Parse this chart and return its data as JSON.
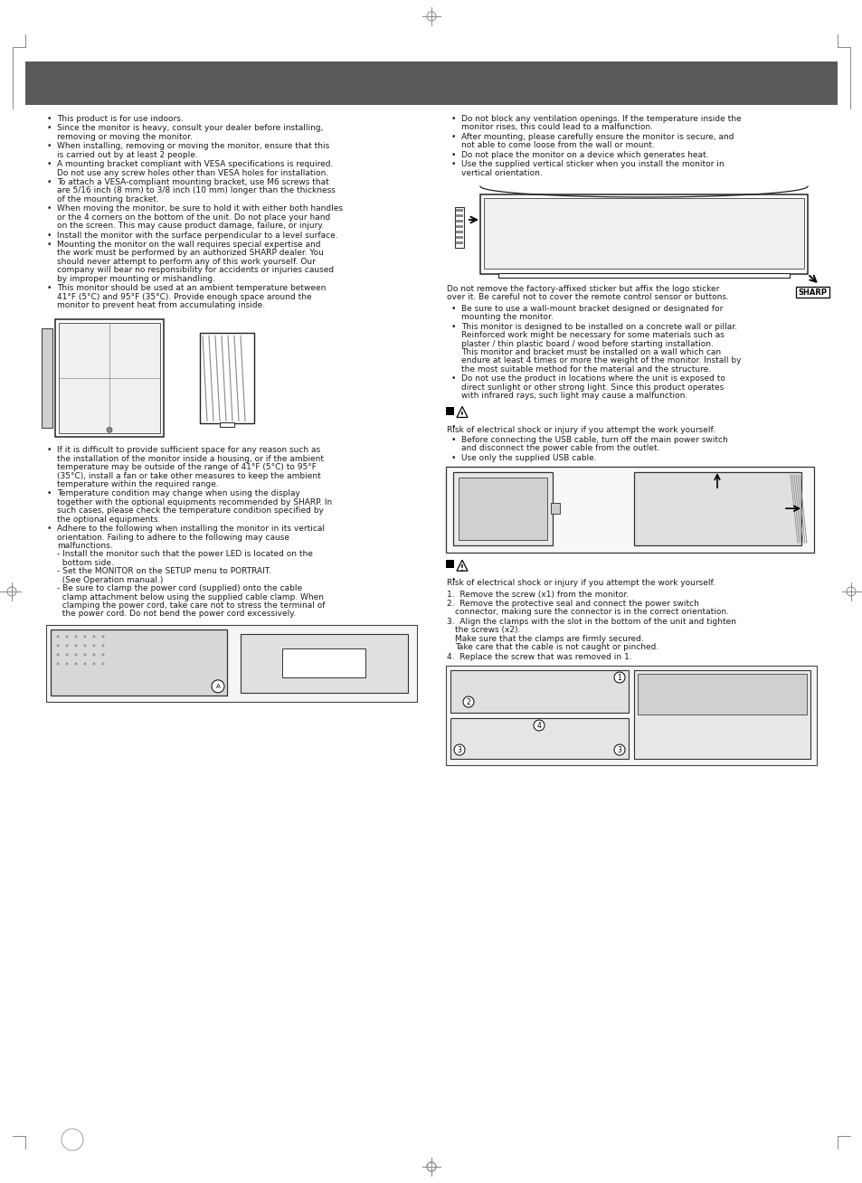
{
  "page_bg": "#ffffff",
  "header_bar_color": "#595959",
  "fs": 6.5,
  "tc": "#1a1a1a",
  "left_col_bullets_top": [
    "This product is for use indoors.",
    "Since the monitor is heavy, consult your dealer before installing,\nremoving or moving the monitor.",
    "When installing, removing or moving the monitor, ensure that this\nis carried out by at least 2 people.",
    "A mounting bracket compliant with VESA specifications is required.\nDo not use any screw holes other than VESA holes for installation.",
    "To attach a VESA-compliant mounting bracket, use M6 screws that\nare 5/16 inch (8 mm) to 3/8 inch (10 mm) longer than the thickness\nof the mounting bracket.",
    "When moving the monitor, be sure to hold it with either both handles\nor the 4 corners on the bottom of the unit. Do not place your hand\non the screen. This may cause product damage, failure, or injury.",
    "Install the monitor with the surface perpendicular to a level surface.",
    "Mounting the monitor on the wall requires special expertise and\nthe work must be performed by an authorized SHARP dealer. You\nshould never attempt to perform any of this work yourself. Our\ncompany will bear no responsibility for accidents or injuries caused\nby improper mounting or mishandling.",
    "This monitor should be used at an ambient temperature between\n41°F (5°C) and 95°F (35°C). Provide enough space around the\nmonitor to prevent heat from accumulating inside."
  ],
  "right_col_bullets_top": [
    "Do not block any ventilation openings. If the temperature inside the\nmonitor rises, this could lead to a malfunction.",
    "After mounting, please carefully ensure the monitor is secure, and\nnot able to come loose from the wall or mount.",
    "Do not place the monitor on a device which generates heat.",
    "Use the supplied vertical sticker when you install the monitor in\nvertical orientation."
  ],
  "right_after_image_text": "Do not remove the factory-affixed sticker but affix the logo sticker\nover it. Be careful not to cover the remote control sensor or buttons.",
  "right_col_bullets2": [
    "Be sure to use a wall-mount bracket designed or designated for\nmounting the monitor.",
    "This monitor is designed to be installed on a concrete wall or pillar.\nReinforced work might be necessary for some materials such as\nplaster / thin plastic board / wood before starting installation.\nThis monitor and bracket must be installed on a wall which can\nendure at least 4 times or more the weight of the monitor. Install by\nthe most suitable method for the material and the structure.",
    "Do not use the product in locations where the unit is exposed to\ndirect sunlight or other strong light. Since this product operates\nwith infrared rays, such light may cause a malfunction."
  ],
  "usb_warning": "Risk of electrical shock or injury if you attempt the work yourself.",
  "usb_bullets": [
    "Before connecting the USB cable, turn off the main power switch\nand disconnect the power cable from the outlet.",
    "Use only the supplied USB cable."
  ],
  "ps_warning": "Risk of electrical shock or injury if you attempt the work yourself.",
  "ps_steps": [
    "1.  Remove the screw (x1) from the monitor.",
    "2.  Remove the protective seal and connect the power switch\n     connector, making sure the connector is in the correct orientation.",
    "3.  Align the clamps with the slot in the bottom of the unit and tighten\n     the screws (x2).\n     Make sure that the clamps are firmly secured.\n     Take care that the cable is not caught or pinched.",
    "4.  Replace the screw that was removed in 1."
  ],
  "left_col_bullets_bottom": [
    "If it is difficult to provide sufficient space for any reason such as\nthe installation of the monitor inside a housing, or if the ambient\ntemperature may be outside of the range of 41°F (5°C) to 95°F\n(35°C), install a fan or take other measures to keep the ambient\ntemperature within the required range.",
    "Temperature condition may change when using the display\ntogether with the optional equipments recommended by SHARP. In\nsuch cases, please check the temperature condition specified by\nthe optional equipments.",
    "Adhere to the following when installing the monitor in its vertical\norientation. Failing to adhere to the following may cause\nmalfunctions.\n- Install the monitor such that the power LED is located on the\n  bottom side.\n- Set the MONITOR on the SETUP menu to PORTRAIT.\n  (See Operation manual.)\n- Be sure to clamp the power cord (supplied) onto the cable\n  clamp attachment below using the supplied cable clamp. When\n  clamping the power cord, take care not to stress the terminal of\n  the power cord. Do not bend the power cord excessively."
  ]
}
